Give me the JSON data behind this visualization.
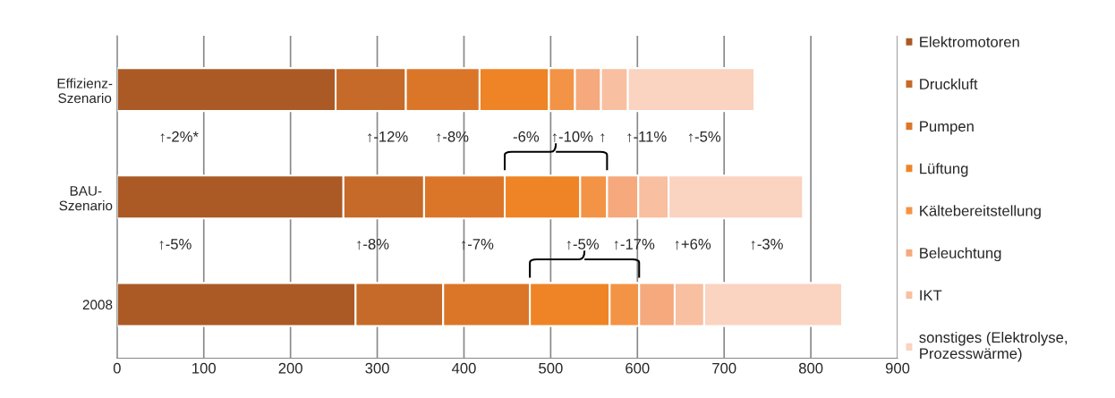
{
  "chart_data": {
    "type": "bar",
    "orientation": "horizontal",
    "stacked": true,
    "categories": [
      "Effizienz-\nSzenario",
      "BAU-\nSzenario",
      "2008"
    ],
    "series": [
      {
        "name": "Elektromotoren",
        "color": "#ab5a26",
        "values": [
          252,
          261,
          275
        ]
      },
      {
        "name": "Druckluft",
        "color": "#c56a29",
        "values": [
          81,
          93,
          101
        ]
      },
      {
        "name": "Pumpen",
        "color": "#db7629",
        "values": [
          85,
          93,
          100
        ]
      },
      {
        "name": "Lüftung",
        "color": "#ee8425",
        "values": [
          80,
          87,
          92
        ]
      },
      {
        "name": "Kältebereitstellung",
        "color": "#f39345",
        "values": [
          30,
          31,
          34
        ]
      },
      {
        "name": "Beleuchtung",
        "color": "#f5a97d",
        "values": [
          30,
          36,
          41
        ]
      },
      {
        "name": "IKT",
        "color": "#f8bfa1",
        "values": [
          31,
          35,
          34
        ]
      },
      {
        "name": "sonstiges (Elektrolyse,\nProzesswärme)",
        "color": "#fad3c1",
        "values": [
          146,
          155,
          159
        ]
      }
    ],
    "xlim": [
      0,
      900
    ],
    "xticks": [
      0,
      100,
      200,
      300,
      400,
      500,
      600,
      700,
      800,
      900
    ],
    "grid": "x",
    "legend": "right",
    "annotations": [
      "↑-2%*",
      "↑-12%",
      "↑-8%",
      "-6%",
      "↑-10%",
      "↑",
      "↑-11%",
      "↑-5%",
      "↑-5%",
      "↑-8%",
      "↑-7%",
      "↑-5%",
      "↑-17%",
      "↑+6%",
      "↑-3%"
    ]
  }
}
